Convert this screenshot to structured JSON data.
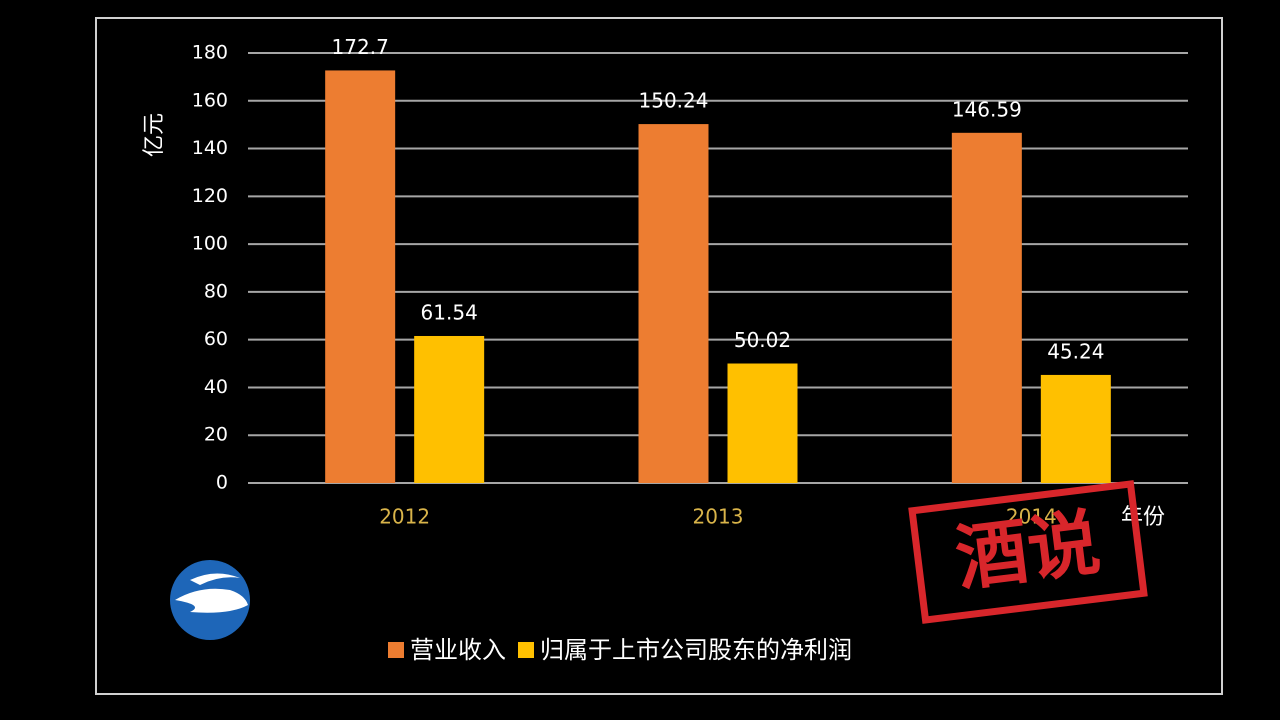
{
  "chart_data": {
    "type": "bar",
    "y_label": "亿元",
    "x_label": "年份",
    "categories": [
      "2012",
      "2013",
      "2014"
    ],
    "series": [
      {
        "name": "营业收入",
        "color": "#ed7d31",
        "values": [
          172.7,
          150.24,
          146.59
        ]
      },
      {
        "name": "归属于上市公司股东的净利润",
        "color": "#ffc000",
        "values": [
          61.54,
          50.02,
          45.24
        ]
      }
    ],
    "ylim": [
      0,
      180
    ],
    "yticks": [
      0,
      20,
      40,
      60,
      80,
      100,
      120,
      140,
      160,
      180
    ],
    "grid": true,
    "legend": "bottom"
  },
  "stamp": "酒说"
}
